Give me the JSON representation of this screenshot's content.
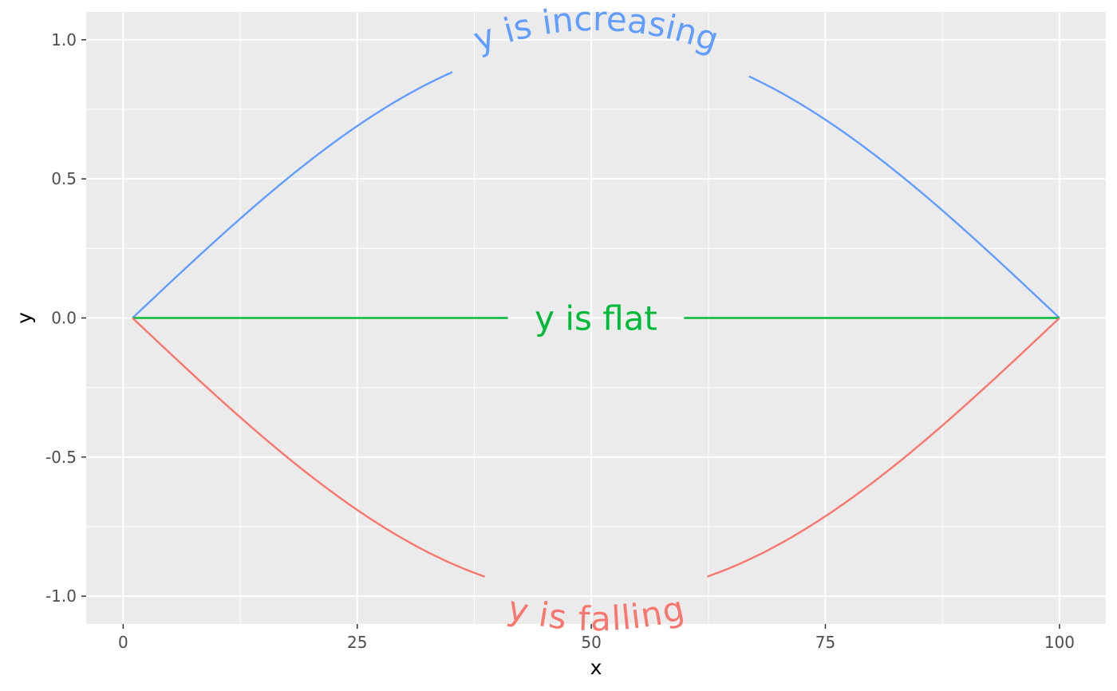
{
  "chart_data": {
    "type": "line",
    "title": "",
    "xlabel": "x",
    "ylabel": "y",
    "xlim": [
      -3.95,
      104.95
    ],
    "ylim": [
      -1.1,
      1.1
    ],
    "x_ticks": [
      0,
      25,
      50,
      75,
      100
    ],
    "x_tick_labels": [
      "0",
      "25",
      "50",
      "75",
      "100"
    ],
    "y_ticks": [
      -1.0,
      -0.5,
      0.0,
      0.5,
      1.0
    ],
    "y_tick_labels": [
      "-1.0",
      "-0.5",
      "0.0",
      "0.5",
      "1.0"
    ],
    "grid": true,
    "legend": "none",
    "background": "#ebebeb",
    "x_range": [
      1,
      100
    ],
    "series": [
      {
        "key": "increasing",
        "label": "y is increasing",
        "color": "#619cff",
        "function": "sin",
        "peak": 1.0,
        "label_side": "above"
      },
      {
        "key": "flat",
        "label": "y is flat",
        "color": "#00ba38",
        "function": "zero",
        "peak": 0.0,
        "label_side": "on"
      },
      {
        "key": "falling",
        "label": "y is falling",
        "color": "#f8766d",
        "function": "neg-sin",
        "peak": -1.0,
        "label_side": "below"
      }
    ]
  }
}
